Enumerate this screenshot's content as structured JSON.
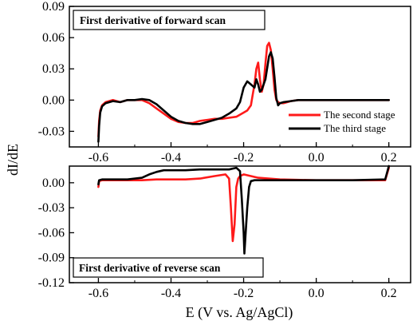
{
  "figure": {
    "xlabel": "E (V vs. Ag/AgCl)",
    "ylabel": "dI/dE"
  },
  "chart_data": [
    {
      "type": "line",
      "title": "First derivative of forward scan",
      "xlim": [
        -0.68,
        0.26
      ],
      "ylim": [
        -0.045,
        0.09
      ],
      "x_ticks": [
        -0.6,
        -0.4,
        -0.2,
        0.0,
        0.2
      ],
      "x_tick_labels": [
        "-0.6",
        "-0.4",
        "-0.2",
        "0.0",
        "0.2"
      ],
      "y_ticks": [
        -0.03,
        0.0,
        0.03,
        0.06,
        0.09
      ],
      "y_tick_labels": [
        "-0.03",
        "0.00",
        "0.03",
        "0.06",
        "0.09"
      ],
      "legend_position": "right",
      "series": [
        {
          "name": "The second stage",
          "color": "#ff1a1a",
          "x": [
            -0.6,
            -0.598,
            -0.595,
            -0.59,
            -0.58,
            -0.56,
            -0.54,
            -0.52,
            -0.5,
            -0.48,
            -0.46,
            -0.44,
            -0.42,
            -0.4,
            -0.38,
            -0.36,
            -0.34,
            -0.32,
            -0.3,
            -0.28,
            -0.26,
            -0.24,
            -0.22,
            -0.2,
            -0.19,
            -0.18,
            -0.175,
            -0.17,
            -0.165,
            -0.16,
            -0.155,
            -0.15,
            -0.145,
            -0.14,
            -0.135,
            -0.13,
            -0.125,
            -0.12,
            -0.115,
            -0.11,
            -0.105,
            -0.1,
            -0.09,
            -0.07,
            -0.05,
            0.0,
            0.1,
            0.2
          ],
          "y": [
            -0.035,
            -0.02,
            -0.01,
            -0.005,
            -0.002,
            0.0,
            -0.002,
            0.0,
            0.0,
            0.0,
            -0.003,
            -0.008,
            -0.013,
            -0.018,
            -0.021,
            -0.022,
            -0.022,
            -0.02,
            -0.019,
            -0.018,
            -0.018,
            -0.017,
            -0.016,
            -0.012,
            -0.01,
            -0.005,
            0.005,
            0.015,
            0.03,
            0.036,
            0.02,
            0.008,
            0.015,
            0.035,
            0.052,
            0.055,
            0.048,
            0.03,
            0.01,
            0.0,
            -0.002,
            -0.003,
            -0.003,
            -0.001,
            0.0,
            0.0,
            0.0,
            0.0
          ]
        },
        {
          "name": "The third stage",
          "color": "#000000",
          "x": [
            -0.6,
            -0.598,
            -0.595,
            -0.59,
            -0.58,
            -0.56,
            -0.54,
            -0.52,
            -0.5,
            -0.48,
            -0.46,
            -0.44,
            -0.42,
            -0.4,
            -0.38,
            -0.36,
            -0.34,
            -0.32,
            -0.3,
            -0.28,
            -0.26,
            -0.24,
            -0.22,
            -0.21,
            -0.2,
            -0.19,
            -0.18,
            -0.17,
            -0.165,
            -0.16,
            -0.155,
            -0.15,
            -0.14,
            -0.13,
            -0.125,
            -0.12,
            -0.115,
            -0.11,
            -0.105,
            -0.1,
            -0.09,
            -0.07,
            -0.05,
            0.0,
            0.1,
            0.2
          ],
          "y": [
            -0.04,
            -0.025,
            -0.012,
            -0.006,
            -0.003,
            -0.001,
            -0.002,
            0.0,
            0.0,
            0.001,
            0.0,
            -0.004,
            -0.01,
            -0.016,
            -0.02,
            -0.022,
            -0.023,
            -0.023,
            -0.021,
            -0.019,
            -0.017,
            -0.013,
            -0.008,
            -0.002,
            0.012,
            0.018,
            0.015,
            0.012,
            0.02,
            0.015,
            0.008,
            0.01,
            0.02,
            0.042,
            0.046,
            0.04,
            0.022,
            0.002,
            -0.005,
            -0.003,
            -0.002,
            -0.001,
            0.0,
            0.0,
            0.0,
            0.0
          ]
        }
      ]
    },
    {
      "type": "line",
      "title": "First derivative of reverse scan",
      "xlim": [
        -0.68,
        0.26
      ],
      "ylim": [
        -0.12,
        0.02
      ],
      "x_ticks": [
        -0.6,
        -0.4,
        -0.2,
        0.0,
        0.2
      ],
      "x_tick_labels": [
        "-0.6",
        "-0.4",
        "-0.2",
        "0.0",
        "0.2"
      ],
      "y_ticks": [
        -0.12,
        -0.09,
        -0.06,
        -0.03,
        0.0
      ],
      "y_tick_labels": [
        "-0.12",
        "-0.09",
        "-0.06",
        "-0.03",
        "0.00"
      ],
      "series": [
        {
          "name": "The second stage",
          "color": "#ff1a1a",
          "x": [
            -0.6,
            -0.598,
            -0.59,
            -0.56,
            -0.52,
            -0.48,
            -0.44,
            -0.4,
            -0.36,
            -0.32,
            -0.28,
            -0.25,
            -0.24,
            -0.235,
            -0.23,
            -0.225,
            -0.22,
            -0.215,
            -0.21,
            -0.2,
            -0.18,
            -0.16,
            -0.1,
            0.0,
            0.1,
            0.19,
            0.2
          ],
          "y": [
            -0.005,
            0.002,
            0.003,
            0.003,
            0.003,
            0.003,
            0.004,
            0.004,
            0.004,
            0.005,
            0.008,
            0.01,
            0.005,
            -0.03,
            -0.07,
            -0.05,
            -0.005,
            0.005,
            0.008,
            0.01,
            0.008,
            0.006,
            0.004,
            0.003,
            0.003,
            0.003,
            0.018
          ]
        },
        {
          "name": "The third stage",
          "color": "#000000",
          "x": [
            -0.6,
            -0.598,
            -0.59,
            -0.56,
            -0.52,
            -0.48,
            -0.46,
            -0.44,
            -0.42,
            -0.4,
            -0.36,
            -0.32,
            -0.28,
            -0.24,
            -0.22,
            -0.21,
            -0.205,
            -0.2,
            -0.198,
            -0.195,
            -0.19,
            -0.185,
            -0.18,
            -0.17,
            -0.15,
            -0.1,
            0.0,
            0.1,
            0.19,
            0.2
          ],
          "y": [
            -0.002,
            0.003,
            0.004,
            0.004,
            0.004,
            0.006,
            0.01,
            0.013,
            0.015,
            0.015,
            0.015,
            0.016,
            0.016,
            0.016,
            0.018,
            0.014,
            -0.02,
            -0.06,
            -0.085,
            -0.065,
            -0.03,
            -0.005,
            0.002,
            0.003,
            0.003,
            0.003,
            0.003,
            0.003,
            0.004,
            0.02
          ]
        }
      ]
    }
  ]
}
